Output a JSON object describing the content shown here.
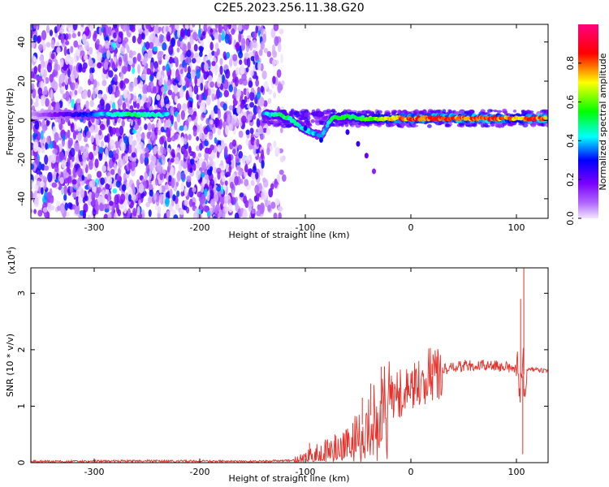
{
  "chart_data": [
    {
      "type": "heatmap",
      "title": "C2E5.2023.256.11.38.G20",
      "xlabel": "Height of straight line (km)",
      "ylabel": "Frequency (Hz)",
      "xlim": [
        -360,
        130
      ],
      "ylim": [
        -50,
        49
      ],
      "x_ticks": [
        -300,
        -200,
        -100,
        0,
        100
      ],
      "y_ticks": [
        -40,
        -20,
        0,
        20,
        40
      ],
      "colorbar": {
        "label": "Normalized spectral amplitude",
        "range": [
          0.0,
          1.0
        ],
        "ticks": [
          0.0,
          0.2,
          0.4,
          0.6,
          0.8
        ],
        "colors": [
          "#f2e6ff",
          "#7a00ff",
          "#0000ff",
          "#00ffff",
          "#00ff00",
          "#ffff00",
          "#ff0000",
          "#ff0080"
        ]
      },
      "ridge": [
        {
          "x": -280,
          "y": 3,
          "amp": 0.45
        },
        {
          "x": -270,
          "y": 3,
          "amp": 0.5
        },
        {
          "x": -260,
          "y": 3,
          "amp": 0.5
        },
        {
          "x": -250,
          "y": 3,
          "amp": 0.45
        },
        {
          "x": -240,
          "y": 3,
          "amp": 0.45
        },
        {
          "x": -230,
          "y": 3,
          "amp": 0.4
        },
        {
          "x": -140,
          "y": 3,
          "amp": 0.4
        },
        {
          "x": -125,
          "y": 3,
          "amp": 0.5
        },
        {
          "x": -115,
          "y": 1,
          "amp": 0.5
        },
        {
          "x": -105,
          "y": -3,
          "amp": 0.45
        },
        {
          "x": -95,
          "y": -6,
          "amp": 0.4
        },
        {
          "x": -85,
          "y": -8,
          "amp": 0.35
        },
        {
          "x": -75,
          "y": 1,
          "amp": 0.5
        },
        {
          "x": -60,
          "y": 2,
          "amp": 0.55
        },
        {
          "x": -45,
          "y": 1,
          "amp": 0.55
        },
        {
          "x": -30,
          "y": 1,
          "amp": 0.65
        },
        {
          "x": -10,
          "y": 1,
          "amp": 0.8
        },
        {
          "x": 10,
          "y": 1,
          "amp": 0.85
        },
        {
          "x": 40,
          "y": 1,
          "amp": 0.85
        },
        {
          "x": 70,
          "y": 1,
          "amp": 0.85
        },
        {
          "x": 90,
          "y": 1,
          "amp": 0.8
        },
        {
          "x": 100,
          "y": 1,
          "amp": 0.7
        },
        {
          "x": 115,
          "y": 1,
          "amp": 0.85
        },
        {
          "x": 128,
          "y": 1,
          "amp": 0.85
        }
      ],
      "tails": [
        {
          "x": -100,
          "y": -4,
          "amp": 0.3
        },
        {
          "x": -85,
          "y": -10,
          "amp": 0.3
        },
        {
          "x": -60,
          "y": -6,
          "amp": 0.25
        },
        {
          "x": -50,
          "y": -12,
          "amp": 0.25
        },
        {
          "x": -42,
          "y": -18,
          "amp": 0.2
        },
        {
          "x": -35,
          "y": -26,
          "amp": 0.15
        }
      ]
    },
    {
      "type": "line",
      "xlabel": "Height of straight line (km)",
      "ylabel": "SNR (10 * v/v)",
      "y_scale_label": "(x10",
      "y_scale_exponent": "4",
      "y_scale_suffix": ")",
      "xlim": [
        -360,
        130
      ],
      "ylim": [
        0,
        3.45
      ],
      "x_ticks": [
        -300,
        -200,
        -100,
        0,
        100
      ],
      "y_ticks": [
        0,
        1,
        2,
        3
      ],
      "color": "#e8302a",
      "envelope": [
        {
          "x": -360,
          "y": 0.02
        },
        {
          "x": -250,
          "y": 0.03
        },
        {
          "x": -150,
          "y": 0.02
        },
        {
          "x": -110,
          "y": 0.04
        },
        {
          "x": -90,
          "y": 0.15
        },
        {
          "x": -75,
          "y": 0.25
        },
        {
          "x": -60,
          "y": 0.35
        },
        {
          "x": -45,
          "y": 0.7
        },
        {
          "x": -35,
          "y": 0.9
        },
        {
          "x": -25,
          "y": 1.1
        },
        {
          "x": -15,
          "y": 1.2
        },
        {
          "x": 0,
          "y": 1.3
        },
        {
          "x": 15,
          "y": 1.5
        },
        {
          "x": 30,
          "y": 1.65
        },
        {
          "x": 50,
          "y": 1.72
        },
        {
          "x": 70,
          "y": 1.72
        },
        {
          "x": 90,
          "y": 1.7
        },
        {
          "x": 100,
          "y": 1.65
        },
        {
          "x": 105,
          "y": 1.5
        },
        {
          "x": 110,
          "y": 1.66
        },
        {
          "x": 130,
          "y": 1.62
        }
      ],
      "spikes": [
        {
          "x": -96,
          "y": 0.35
        },
        {
          "x": -72,
          "y": 0.5
        },
        {
          "x": -55,
          "y": 0.7
        },
        {
          "x": -46,
          "y": 1.15
        },
        {
          "x": -38,
          "y": 1.4
        },
        {
          "x": -28,
          "y": 1.7
        },
        {
          "x": -20,
          "y": 1.2
        },
        {
          "x": 1,
          "y": 1.6
        },
        {
          "x": 20,
          "y": 1.75
        },
        {
          "x": 104,
          "y": 2.9
        },
        {
          "x": 107,
          "y": 3.45
        },
        {
          "x": 106,
          "y": 0.15
        }
      ]
    }
  ]
}
